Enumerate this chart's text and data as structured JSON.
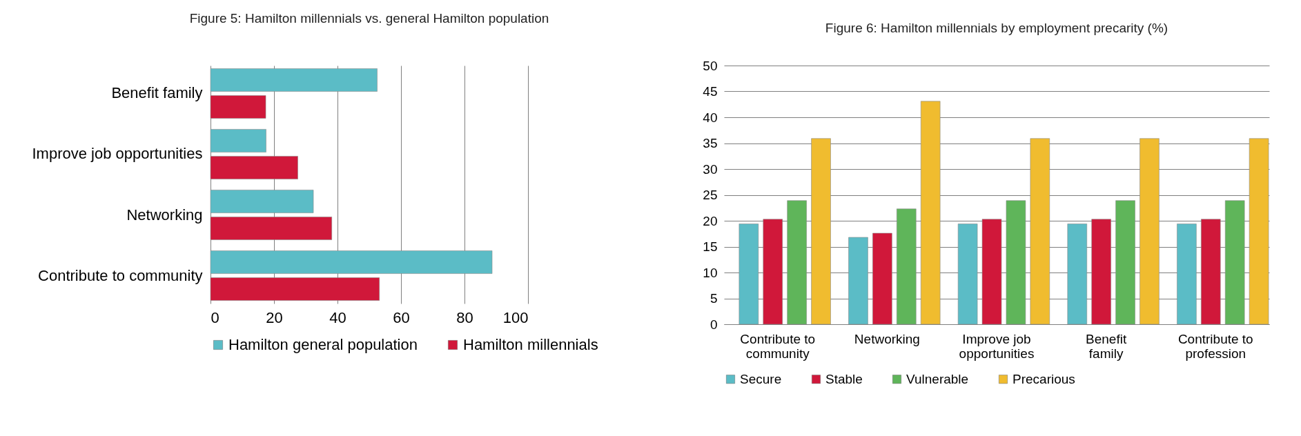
{
  "chart_data": [
    {
      "type": "bar",
      "orientation": "horizontal",
      "title": "Figure 5: Hamilton millennials vs. general Hamilton population",
      "categories": [
        "Benefit family",
        "Improve job opportunities",
        "Networking",
        "Contribute to community"
      ],
      "series": [
        {
          "name": "Hamilton general population",
          "color": "#5bbcc6",
          "values": [
            52.5,
            17.5,
            32.4,
            88.7
          ]
        },
        {
          "name": "Hamilton millennials",
          "color": "#d0183a",
          "values": [
            17.4,
            27.5,
            38.2,
            53.2
          ]
        }
      ],
      "xlim": [
        0,
        100
      ],
      "xticks": [
        0,
        20,
        40,
        60,
        80,
        100
      ],
      "grid": "x",
      "legend": "bottom"
    },
    {
      "type": "bar",
      "title": "Figure 6: Hamilton millennials by employment precarity (%)",
      "categories": [
        "Contribute to community",
        "Networking",
        "Improve job opportunities",
        "Benefit family",
        "Contribute to profession"
      ],
      "series": [
        {
          "name": "Secure",
          "color": "#5bbcc6",
          "values": [
            19.4,
            16.8,
            19.4,
            19.4,
            19.4
          ]
        },
        {
          "name": "Stable",
          "color": "#d0183a",
          "values": [
            20.3,
            17.6,
            20.3,
            20.3,
            20.3
          ]
        },
        {
          "name": "Vulnerable",
          "color": "#5fb55a",
          "values": [
            23.9,
            22.3,
            23.9,
            23.9,
            23.9
          ]
        },
        {
          "name": "Precarious",
          "color": "#f0bc2f",
          "values": [
            35.9,
            43.1,
            35.9,
            35.9,
            35.9
          ]
        }
      ],
      "ylim": [
        0,
        50
      ],
      "yticks": [
        0,
        5,
        10,
        15,
        20,
        25,
        30,
        35,
        40,
        45,
        50
      ],
      "grid": "y",
      "legend": "bottom"
    }
  ]
}
